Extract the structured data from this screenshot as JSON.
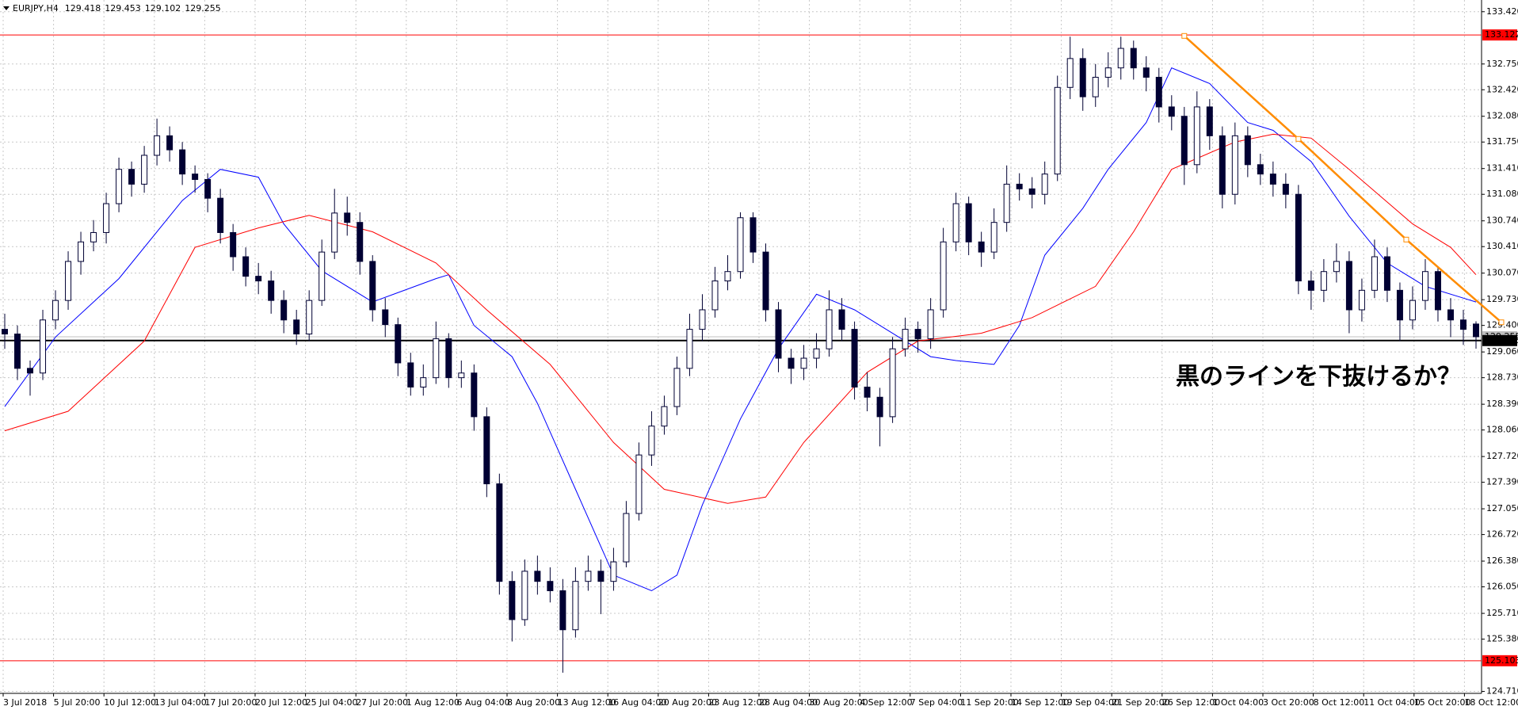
{
  "header": {
    "symbol": "EURJPY,H4",
    "ohlc": [
      129.418,
      129.453,
      129.102,
      129.255
    ]
  },
  "chart_data": {
    "type": "candlestick",
    "categories": [
      "3 Jul 2018",
      "5 Jul 20:00",
      "10 Jul 12:00",
      "13 Jul 04:00",
      "17 Jul 20:00",
      "20 Jul 12:00",
      "25 Jul 04:00",
      "27 Jul 20:00",
      "1 Aug 12:00",
      "6 Aug 04:00",
      "8 Aug 20:00",
      "13 Aug 12:00",
      "16 Aug 04:00",
      "20 Aug 20:00",
      "23 Aug 12:00",
      "28 Aug 04:00",
      "30 Aug 20:00",
      "4 Sep 12:00",
      "7 Sep 04:00",
      "11 Sep 20:00",
      "14 Sep 12:00",
      "19 Sep 04:00",
      "21 Sep 20:00",
      "26 Sep 12:00",
      "1 Oct 04:00",
      "3 Oct 20:00",
      "8 Oct 12:00",
      "11 Oct 04:00",
      "15 Oct 20:00",
      "18 Oct 12:00"
    ],
    "candles": [
      [
        129.35,
        129.55,
        129.1,
        129.29
      ],
      [
        129.29,
        129.4,
        128.7,
        128.85
      ],
      [
        128.85,
        128.95,
        128.5,
        128.79
      ],
      [
        128.79,
        129.6,
        128.7,
        129.47
      ],
      [
        129.47,
        129.85,
        129.35,
        129.72
      ],
      [
        129.72,
        130.35,
        129.6,
        130.22
      ],
      [
        130.22,
        130.6,
        130.05,
        130.47
      ],
      [
        130.47,
        130.75,
        130.35,
        130.59
      ],
      [
        130.59,
        131.1,
        130.45,
        130.96
      ],
      [
        130.96,
        131.55,
        130.85,
        131.4
      ],
      [
        131.4,
        131.5,
        131.05,
        131.21
      ],
      [
        131.21,
        131.7,
        131.1,
        131.58
      ],
      [
        131.58,
        132.05,
        131.45,
        131.83
      ],
      [
        131.83,
        131.95,
        131.5,
        131.65
      ],
      [
        131.65,
        131.75,
        131.2,
        131.34
      ],
      [
        131.34,
        131.45,
        131.1,
        131.27
      ],
      [
        131.27,
        131.35,
        130.85,
        131.03
      ],
      [
        131.03,
        131.15,
        130.45,
        130.59
      ],
      [
        130.59,
        130.7,
        130.1,
        130.28
      ],
      [
        130.28,
        130.4,
        129.9,
        130.03
      ],
      [
        130.03,
        130.2,
        129.8,
        129.97
      ],
      [
        129.97,
        130.1,
        129.55,
        129.72
      ],
      [
        129.72,
        129.85,
        129.3,
        129.47
      ],
      [
        129.47,
        129.6,
        129.15,
        129.29
      ],
      [
        129.29,
        129.85,
        129.2,
        129.72
      ],
      [
        129.72,
        130.5,
        129.65,
        130.34
      ],
      [
        130.34,
        131.15,
        130.25,
        130.84
      ],
      [
        130.84,
        131.05,
        130.55,
        130.72
      ],
      [
        130.72,
        130.85,
        130.05,
        130.22
      ],
      [
        130.22,
        130.3,
        129.45,
        129.6
      ],
      [
        129.6,
        129.75,
        129.25,
        129.41
      ],
      [
        129.41,
        129.5,
        128.75,
        128.92
      ],
      [
        128.92,
        129.05,
        128.5,
        128.61
      ],
      [
        128.61,
        128.9,
        128.5,
        128.73
      ],
      [
        128.73,
        129.45,
        128.65,
        129.23
      ],
      [
        129.23,
        129.3,
        128.6,
        128.73
      ],
      [
        128.73,
        128.95,
        128.6,
        128.79
      ],
      [
        128.79,
        128.9,
        128.05,
        128.23
      ],
      [
        128.23,
        128.35,
        127.2,
        127.37
      ],
      [
        127.37,
        127.5,
        125.95,
        126.12
      ],
      [
        126.12,
        126.25,
        125.35,
        125.63
      ],
      [
        125.63,
        126.4,
        125.55,
        126.25
      ],
      [
        126.25,
        126.45,
        125.95,
        126.12
      ],
      [
        126.12,
        126.3,
        125.85,
        126.0
      ],
      [
        126.0,
        126.15,
        124.95,
        125.5
      ],
      [
        125.5,
        126.3,
        125.4,
        126.12
      ],
      [
        126.12,
        126.45,
        126.0,
        126.25
      ],
      [
        126.25,
        126.4,
        125.7,
        126.12
      ],
      [
        126.12,
        126.55,
        126.0,
        126.37
      ],
      [
        126.37,
        127.15,
        126.3,
        126.99
      ],
      [
        126.99,
        127.9,
        126.9,
        127.74
      ],
      [
        127.74,
        128.3,
        127.6,
        128.11
      ],
      [
        128.11,
        128.5,
        128.0,
        128.36
      ],
      [
        128.36,
        129.0,
        128.25,
        128.85
      ],
      [
        128.85,
        129.55,
        128.75,
        129.35
      ],
      [
        129.35,
        129.8,
        129.2,
        129.6
      ],
      [
        129.6,
        130.15,
        129.5,
        129.97
      ],
      [
        129.97,
        130.3,
        129.85,
        130.09
      ],
      [
        130.09,
        130.85,
        130.0,
        130.78
      ],
      [
        130.78,
        130.85,
        130.2,
        130.34
      ],
      [
        130.34,
        130.45,
        129.45,
        129.6
      ],
      [
        129.6,
        129.7,
        128.8,
        128.98
      ],
      [
        128.98,
        129.1,
        128.65,
        128.85
      ],
      [
        128.85,
        129.15,
        128.7,
        128.98
      ],
      [
        128.98,
        129.3,
        128.85,
        129.1
      ],
      [
        129.1,
        129.85,
        129.0,
        129.6
      ],
      [
        129.6,
        129.75,
        129.2,
        129.35
      ],
      [
        129.35,
        129.45,
        128.45,
        128.61
      ],
      [
        128.61,
        128.8,
        128.3,
        128.48
      ],
      [
        128.48,
        128.6,
        127.85,
        128.23
      ],
      [
        128.23,
        129.25,
        128.15,
        129.1
      ],
      [
        129.1,
        129.5,
        129.0,
        129.35
      ],
      [
        129.35,
        129.45,
        129.05,
        129.23
      ],
      [
        129.23,
        129.75,
        129.1,
        129.6
      ],
      [
        129.6,
        130.65,
        129.5,
        130.47
      ],
      [
        130.47,
        131.1,
        130.35,
        130.96
      ],
      [
        130.96,
        131.05,
        130.3,
        130.47
      ],
      [
        130.47,
        130.6,
        130.15,
        130.34
      ],
      [
        130.34,
        130.9,
        130.25,
        130.72
      ],
      [
        130.72,
        131.45,
        130.6,
        131.21
      ],
      [
        131.21,
        131.35,
        131.0,
        131.15
      ],
      [
        131.15,
        131.3,
        130.9,
        131.08
      ],
      [
        131.08,
        131.5,
        130.95,
        131.34
      ],
      [
        131.34,
        132.6,
        131.25,
        132.45
      ],
      [
        132.45,
        133.1,
        132.3,
        132.82
      ],
      [
        132.82,
        132.95,
        132.15,
        132.33
      ],
      [
        132.33,
        132.75,
        132.2,
        132.58
      ],
      [
        132.58,
        132.9,
        132.45,
        132.7
      ],
      [
        132.7,
        133.1,
        132.55,
        132.95
      ],
      [
        132.95,
        133.05,
        132.55,
        132.7
      ],
      [
        132.7,
        132.85,
        132.4,
        132.58
      ],
      [
        132.58,
        132.7,
        132.0,
        132.2
      ],
      [
        132.2,
        132.35,
        131.9,
        132.08
      ],
      [
        132.08,
        132.2,
        131.2,
        131.46
      ],
      [
        131.46,
        132.4,
        131.35,
        132.2
      ],
      [
        132.2,
        132.3,
        131.65,
        131.83
      ],
      [
        131.83,
        131.95,
        130.9,
        131.08
      ],
      [
        131.08,
        132.0,
        130.95,
        131.83
      ],
      [
        131.83,
        131.95,
        131.3,
        131.46
      ],
      [
        131.46,
        131.6,
        131.2,
        131.34
      ],
      [
        131.34,
        131.5,
        131.05,
        131.21
      ],
      [
        131.21,
        131.35,
        130.9,
        131.08
      ],
      [
        131.08,
        131.2,
        129.8,
        129.97
      ],
      [
        129.97,
        130.1,
        129.6,
        129.85
      ],
      [
        129.85,
        130.25,
        129.7,
        130.09
      ],
      [
        130.09,
        130.45,
        129.95,
        130.22
      ],
      [
        130.22,
        130.35,
        129.3,
        129.6
      ],
      [
        129.6,
        130.0,
        129.45,
        129.85
      ],
      [
        129.85,
        130.5,
        129.75,
        130.28
      ],
      [
        130.28,
        130.4,
        129.7,
        129.85
      ],
      [
        129.85,
        129.95,
        129.2,
        129.47
      ],
      [
        129.47,
        129.9,
        129.35,
        129.72
      ],
      [
        129.72,
        130.25,
        129.6,
        130.09
      ],
      [
        130.09,
        130.15,
        129.45,
        129.6
      ],
      [
        129.6,
        129.75,
        129.25,
        129.47
      ],
      [
        129.47,
        129.6,
        129.15,
        129.35
      ],
      [
        129.418,
        129.453,
        129.102,
        129.255
      ]
    ],
    "up_color": "#ffffff",
    "down_color": "#000033",
    "wick_color": "#000033",
    "ylim": [
      124.685,
      133.57
    ],
    "yticks": [
      {
        "value": 133.42,
        "label": "133.420"
      },
      {
        "value": 132.75,
        "label": "132.750"
      },
      {
        "value": 132.42,
        "label": "132.420"
      },
      {
        "value": 132.08,
        "label": "132.080"
      },
      {
        "value": 131.75,
        "label": "131.750"
      },
      {
        "value": 131.41,
        "label": "131.410"
      },
      {
        "value": 131.08,
        "label": "131.080"
      },
      {
        "value": 130.74,
        "label": "130.740"
      },
      {
        "value": 130.41,
        "label": "130.410"
      },
      {
        "value": 130.07,
        "label": "130.070"
      },
      {
        "value": 129.73,
        "label": "129.730"
      },
      {
        "value": 129.4,
        "label": "129.400"
      },
      {
        "value": 129.06,
        "label": "129.060"
      },
      {
        "value": 128.73,
        "label": "128.730"
      },
      {
        "value": 128.39,
        "label": "128.390"
      },
      {
        "value": 128.06,
        "label": "128.060"
      },
      {
        "value": 127.72,
        "label": "127.720"
      },
      {
        "value": 127.39,
        "label": "127.390"
      },
      {
        "value": 127.05,
        "label": "127.050"
      },
      {
        "value": 126.72,
        "label": "126.720"
      },
      {
        "value": 126.38,
        "label": "126.380"
      },
      {
        "value": 126.05,
        "label": "126.050"
      },
      {
        "value": 125.71,
        "label": "125.710"
      },
      {
        "value": 125.38,
        "label": "125.380"
      },
      {
        "value": 124.71,
        "label": "124.710"
      }
    ],
    "grid": true,
    "moving_averages": [
      {
        "color": "#0000ff",
        "x": [
          0,
          4,
          9,
          14,
          17,
          20,
          22,
          25,
          29,
          34,
          35,
          37,
          40,
          42,
          45,
          48,
          51,
          53,
          55,
          58,
          61,
          64,
          67,
          71,
          73,
          75,
          78,
          80,
          82,
          85,
          87,
          90,
          92,
          95,
          98,
          100,
          103,
          106,
          109,
          112,
          115,
          116
        ],
        "values": [
          128.36,
          129.25,
          130.0,
          131.0,
          131.4,
          131.3,
          130.7,
          130.1,
          129.7,
          130.0,
          130.05,
          129.4,
          129.0,
          128.4,
          127.3,
          126.2,
          126.0,
          126.2,
          127.1,
          128.2,
          129.1,
          129.8,
          129.6,
          129.2,
          129.0,
          128.95,
          128.9,
          129.4,
          130.3,
          130.9,
          131.4,
          132.0,
          132.7,
          132.5,
          132.0,
          131.9,
          131.5,
          130.8,
          130.2,
          129.9,
          129.75,
          129.7
        ]
      },
      {
        "color": "#ff0000",
        "x": [
          0,
          5,
          11,
          15,
          20,
          24,
          29,
          34,
          38,
          43,
          48,
          52,
          57,
          60,
          63,
          68,
          72,
          77,
          81,
          86,
          89,
          92,
          97,
          100,
          103,
          106,
          111,
          114,
          116
        ],
        "values": [
          128.05,
          128.3,
          129.2,
          130.4,
          130.65,
          130.81,
          130.6,
          130.2,
          129.6,
          128.9,
          127.9,
          127.3,
          127.12,
          127.2,
          127.9,
          128.8,
          129.2,
          129.3,
          129.5,
          129.9,
          130.6,
          131.4,
          131.75,
          131.85,
          131.8,
          131.4,
          130.7,
          130.4,
          130.05
        ]
      }
    ],
    "levels": [
      {
        "value": 133.122,
        "color": "#ff0000"
      },
      {
        "value": 125.103,
        "color": "#ff0000"
      },
      {
        "value": 129.206,
        "color": "#000000"
      }
    ],
    "current_price": {
      "value": 129.255,
      "color": "#c0c0c0"
    },
    "trendline": {
      "color": "#ff8c00",
      "x": [
        93,
        102,
        110.5,
        118
      ],
      "values": [
        133.11,
        131.79,
        130.5,
        129.44
      ]
    },
    "annotation": {
      "text": "黒のラインを下抜けるか？",
      "color": "#f28c28"
    }
  }
}
